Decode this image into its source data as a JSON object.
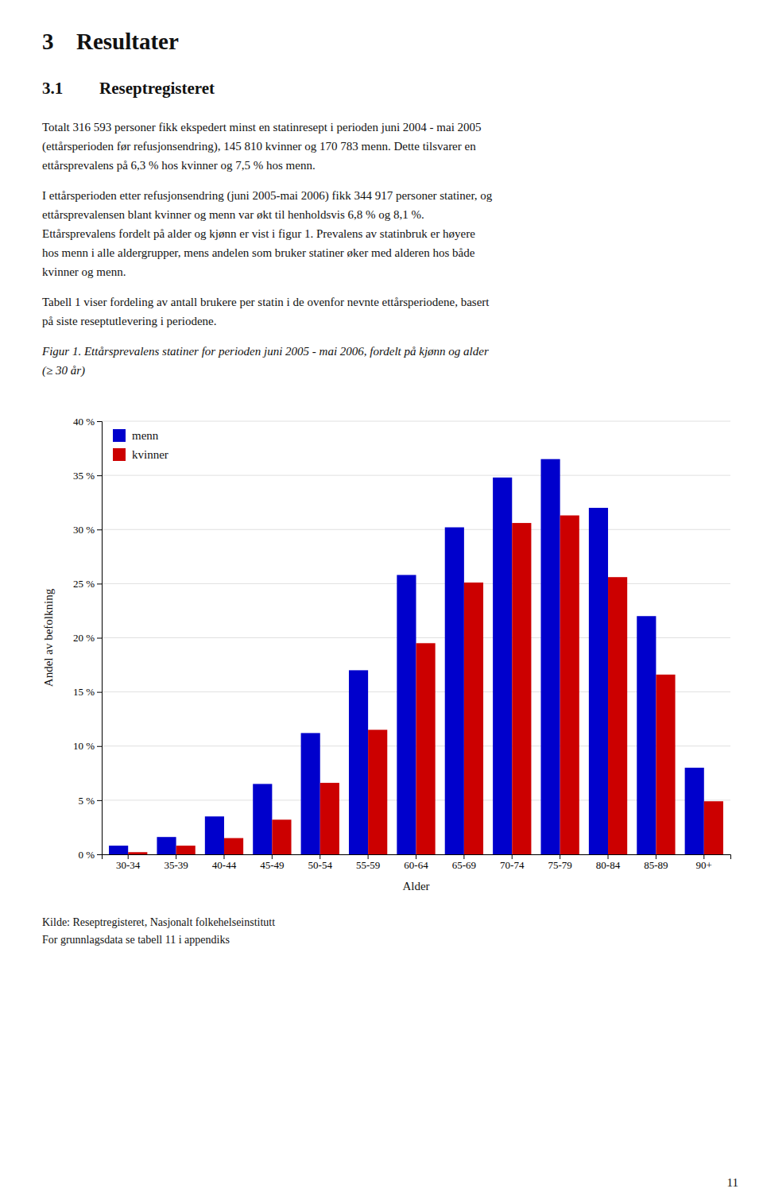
{
  "heading": {
    "number": "3",
    "title": "Resultater"
  },
  "section": {
    "number": "3.1",
    "title": "Reseptregisteret"
  },
  "paragraphs": [
    [
      "Totalt 316 593 personer fikk ekspedert minst en statinresept i perioden juni 2004 - mai 2005",
      "(ettårsperioden før refusjonsendring), 145 810 kvinner og 170 783 menn. Dette tilsvarer en",
      "ettårsprevalens på 6,3 % hos kvinner og 7,5 % hos menn."
    ],
    [
      "I ettårsperioden etter refusjonsendring (juni 2005-mai 2006) fikk 344 917 personer statiner, og",
      "ettårsprevalensen blant kvinner og menn var økt til henholdsvis 6,8 % og 8,1 %.",
      "Ettårsprevalens fordelt på alder og kjønn er vist i figur 1. Prevalens av statinbruk er høyere",
      "hos menn i alle aldergrupper, mens andelen som bruker statiner øker med alderen hos både",
      "kvinner og menn."
    ],
    [
      "Tabell 1 viser fordeling av antall brukere per statin i de ovenfor nevnte ettårsperiodene, basert",
      "på siste reseptutlevering i periodene."
    ]
  ],
  "caption": [
    "Figur 1. Ettårsprevalens statiner for perioden juni 2005 - mai 2006, fordelt på kjønn og alder",
    "(≥ 30 år)"
  ],
  "chart_data": {
    "type": "bar",
    "x_label": "Alder",
    "y_label": "Andel av befolkning",
    "categories": [
      "30-34",
      "35-39",
      "40-44",
      "45-49",
      "50-54",
      "55-59",
      "60-64",
      "65-69",
      "70-74",
      "75-79",
      "80-84",
      "85-89",
      "90+"
    ],
    "series": [
      {
        "name": "menn",
        "color": "#0000CC",
        "values": [
          0.8,
          1.6,
          3.5,
          6.5,
          11.2,
          17.0,
          25.8,
          30.2,
          34.8,
          36.5,
          32.0,
          22.0,
          8.0
        ]
      },
      {
        "name": "kvinner",
        "color": "#CC0000",
        "values": [
          0.2,
          0.8,
          1.5,
          3.2,
          6.6,
          11.5,
          19.5,
          25.1,
          30.6,
          31.3,
          25.6,
          16.6,
          4.9
        ]
      }
    ],
    "ylim": [
      0,
      40
    ],
    "yticks": [
      {
        "value": 0,
        "label": "0 %"
      },
      {
        "value": 5,
        "label": "5 %"
      },
      {
        "value": 10,
        "label": "10 %"
      },
      {
        "value": 15,
        "label": "15 %"
      },
      {
        "value": 20,
        "label": "20 %"
      },
      {
        "value": 25,
        "label": "25 %"
      },
      {
        "value": 30,
        "label": "30 %"
      },
      {
        "value": 35,
        "label": "35 %"
      },
      {
        "value": 40,
        "label": "40 %"
      }
    ],
    "grid": true,
    "legend": "upper left"
  },
  "source": [
    "Kilde: Reseptregisteret, Nasjonalt folkehelseinstitutt",
    "For grunnlagsdata se tabell 11 i appendiks"
  ],
  "page_number": "11"
}
